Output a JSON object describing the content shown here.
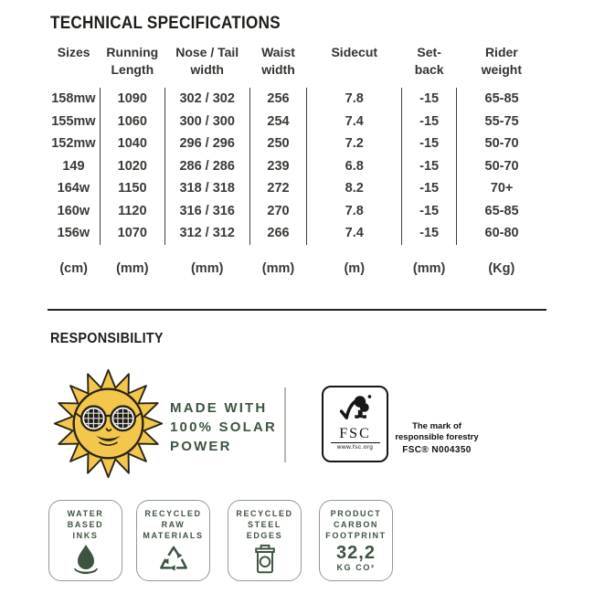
{
  "tech_specs": {
    "title": "TECHNICAL SPECIFICATIONS",
    "columns": [
      {
        "line1": "Sizes",
        "line2": "",
        "unit": "(cm)"
      },
      {
        "line1": "Running",
        "line2": "Length",
        "unit": "(mm)"
      },
      {
        "line1": "Nose / Tail",
        "line2": "width",
        "unit": "(mm)"
      },
      {
        "line1": "Waist",
        "line2": "width",
        "unit": "(mm)"
      },
      {
        "line1": "Sidecut",
        "line2": "",
        "unit": "(m)"
      },
      {
        "line1": "Set-",
        "line2": "back",
        "unit": "(mm)"
      },
      {
        "line1": "Rider",
        "line2": "weight",
        "unit": "(Kg)"
      }
    ],
    "rows": [
      [
        "158mw",
        "1090",
        "302 / 302",
        "256",
        "7.8",
        "-15",
        "65-85"
      ],
      [
        "155mw",
        "1060",
        "300 / 300",
        "254",
        "7.4",
        "-15",
        "55-75"
      ],
      [
        "152mw",
        "1040",
        "296 / 296",
        "250",
        "7.2",
        "-15",
        "50-70"
      ],
      [
        "149",
        "1020",
        "286 / 286",
        "239",
        "6.8",
        "-15",
        "50-70"
      ],
      [
        "164w",
        "1150",
        "318 / 318",
        "272",
        "8.2",
        "-15",
        "70+"
      ],
      [
        "160w",
        "1120",
        "316 / 316",
        "270",
        "7.8",
        "-15",
        "65-85"
      ],
      [
        "156w",
        "1070",
        "312 / 312",
        "266",
        "7.4",
        "-15",
        "60-80"
      ]
    ]
  },
  "responsibility": {
    "title": "RESPONSIBILITY",
    "solar": {
      "line1": "MADE WITH",
      "line2": "100% SOLAR",
      "line3": "POWER"
    },
    "fsc": {
      "brand": "FSC",
      "url": "www.fsc.org",
      "mark_line1": "The mark of",
      "mark_line2": "responsible forestry",
      "license": "FSC® N004350"
    },
    "badges": [
      {
        "line1": "WATER",
        "line2": "BASED",
        "line3": "INKS",
        "icon": "water-drop-icon"
      },
      {
        "line1": "RECYCLED",
        "line2": "RAW",
        "line3": "MATERIALS",
        "icon": "recycle-icon"
      },
      {
        "line1": "RECYCLED",
        "line2": "STEEL",
        "line3": "EDGES",
        "icon": "trash-can-icon"
      },
      {
        "line1": "PRODUCT",
        "line2": "CARBON",
        "line3": "FOOTPRINT",
        "value": "32,2",
        "unit": "KG CO²"
      }
    ]
  },
  "colors": {
    "text_dark": "#1d1d19",
    "table_text": "#3a3a36",
    "eco_green": "#3e5440",
    "sun_yellow": "#f2c74b",
    "sun_outline": "#2a2316",
    "badge_border": "#8f9c90",
    "fsc_black": "#161616"
  }
}
